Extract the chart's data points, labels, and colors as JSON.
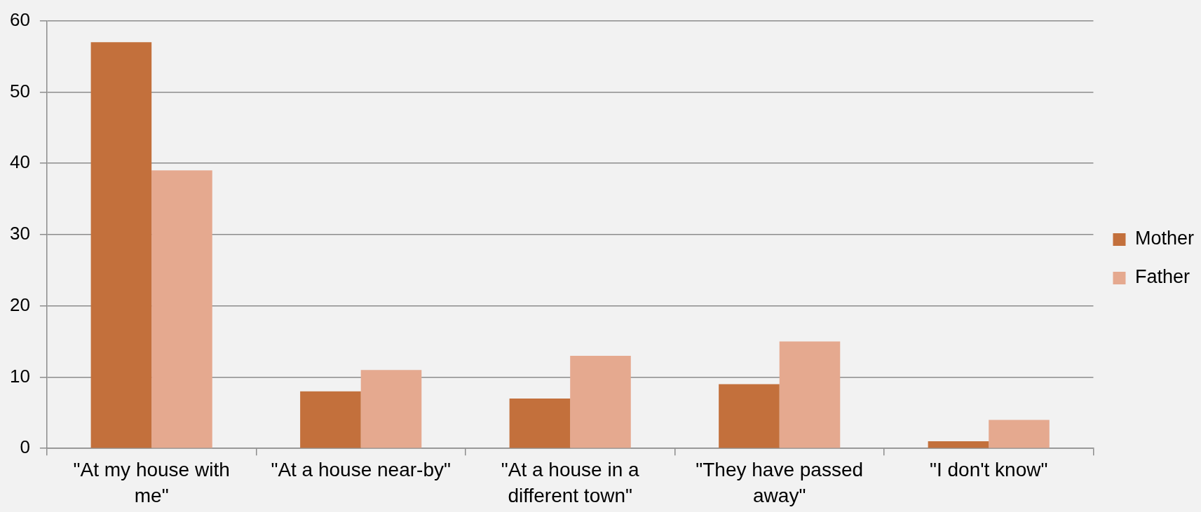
{
  "chart_data": {
    "type": "bar",
    "categories": [
      "\"At my house with me\"",
      "\"At a house near-by\"",
      "\"At a house in a different town\"",
      "\"They have passed away\"",
      "\"I don't know\""
    ],
    "series": [
      {
        "name": "Mother",
        "color": "#c3703c",
        "values": [
          57,
          8,
          7,
          9,
          1
        ]
      },
      {
        "name": "Father",
        "color": "#e5a98f",
        "values": [
          39,
          11,
          13,
          15,
          4
        ]
      }
    ],
    "ylim": [
      0,
      60
    ],
    "yticks": [
      0,
      10,
      20,
      30,
      40,
      50,
      60
    ],
    "grid": "y",
    "legend": "right"
  }
}
